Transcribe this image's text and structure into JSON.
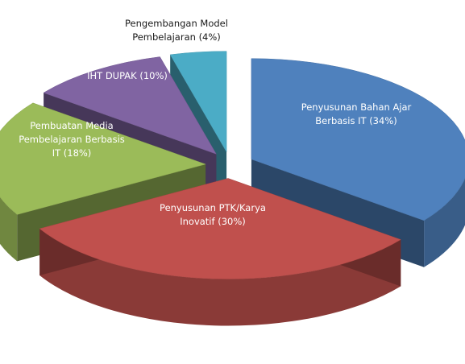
{
  "chart_data": {
    "type": "pie",
    "title": "",
    "slices": [
      {
        "label": "Penyusunan Bahan Ajar Berbasis IT (34%)",
        "value": 34,
        "color": "#4f81bd",
        "exploded": true
      },
      {
        "label": "Penyusunan PTK/Karya Inovatif (30%)",
        "value": 30,
        "color": "#c0504d",
        "exploded": true
      },
      {
        "label": "Pembuatan Media Pembelajaran Berbasis IT (18%)",
        "value": 18,
        "color": "#9bbb59",
        "exploded": true
      },
      {
        "label": "IHT DUPAK (10%)",
        "value": 10,
        "color": "#8064a2",
        "exploded": true
      },
      {
        "label": "Pengembangan Model Pembelajaran (4%)",
        "value": 4,
        "color": "#4bacc6",
        "exploded": true
      }
    ],
    "style": "3d-exploded"
  }
}
